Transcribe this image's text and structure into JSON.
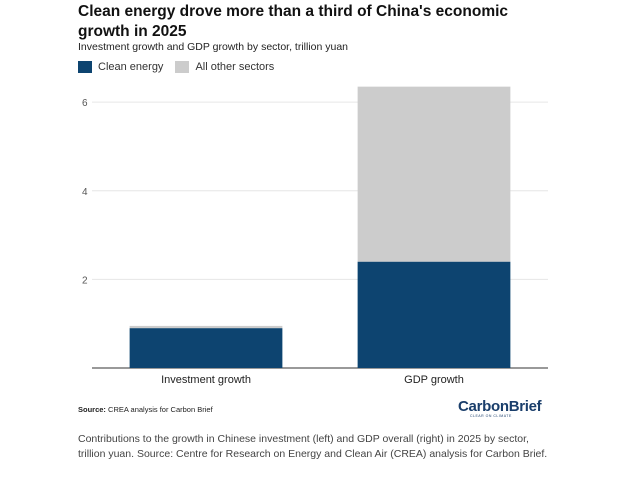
{
  "header": {
    "title": "Clean energy drove more than a third of China's economic growth in 2025",
    "subtitle": "Investment growth and GDP growth by sector, trillion yuan"
  },
  "chart_data": {
    "type": "bar",
    "stacked": true,
    "title": "Clean energy drove more than a third of China's economic growth in 2025",
    "subtitle": "Investment growth and GDP growth by sector, trillion yuan",
    "categories": [
      "Investment growth",
      "GDP growth"
    ],
    "series": [
      {
        "name": "Clean energy",
        "values": [
          0.9,
          2.4
        ],
        "color": "#0d4470"
      },
      {
        "name": "All other sectors",
        "values": [
          0.05,
          3.95
        ],
        "color": "#cccccc"
      }
    ],
    "ylim": [
      0,
      6.5
    ],
    "yticks": [
      2,
      4,
      6
    ],
    "grid": true,
    "legend_position": "top-left"
  },
  "footer": {
    "source_label": "Source:",
    "source_text": "CREA analysis for Carbon Brief",
    "logo": "CarbonBrief",
    "logo_tagline": "CLEAR ON CLIMATE",
    "caption": "Contributions to the growth in Chinese investment (left) and GDP overall (right) in 2025 by sector, trillion yuan. Source: Centre for Research on Energy and Clean Air (CREA) analysis for Carbon Brief."
  }
}
